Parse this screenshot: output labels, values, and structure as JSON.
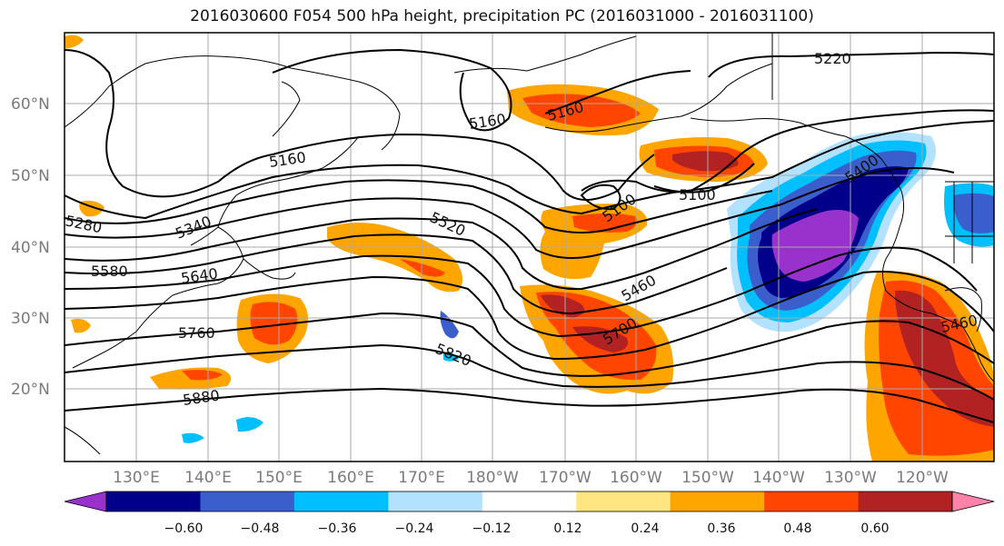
{
  "title": "2016030600 F054 500 hPa height, precipitation PC (2016031000 - 2016031100)",
  "lat_labels": [
    "60°N",
    "50°N",
    "40°N",
    "30°N",
    "20°N"
  ],
  "lon_labels": [
    "130°E",
    "140°E",
    "150°E",
    "160°E",
    "170°E",
    "180°W",
    "170°W",
    "160°W",
    "150°W",
    "140°W",
    "130°W",
    "120°W"
  ],
  "colorbar": {
    "ticks": [
      "−0.60",
      "−0.48",
      "−0.36",
      "−0.24",
      "−0.12",
      "0.12",
      "0.24",
      "0.36",
      "0.48",
      "0.60"
    ],
    "colors": [
      "#9932cc",
      "#00008b",
      "#3a5fcd",
      "#00bfff",
      "#b2e2ff",
      "#ffffff",
      "#ffe680",
      "#ffa500",
      "#ff4500",
      "#b22222",
      "#ff82ab"
    ]
  },
  "contour_labels": {
    "c5220": "5220",
    "c5160a": "5160",
    "c5160b": "5160",
    "c5160c": "5160",
    "c5100a": "5100",
    "c5100b": "5100",
    "c5280": "5280",
    "c5340": "5340",
    "c5520": "5520",
    "c5580": "5580",
    "c5640": "5640",
    "c5460a": "5460",
    "c5460b": "5460",
    "c5400": "5400",
    "c5700": "5700",
    "c5760": "5760",
    "c5820": "5820",
    "c5880": "5880"
  }
}
